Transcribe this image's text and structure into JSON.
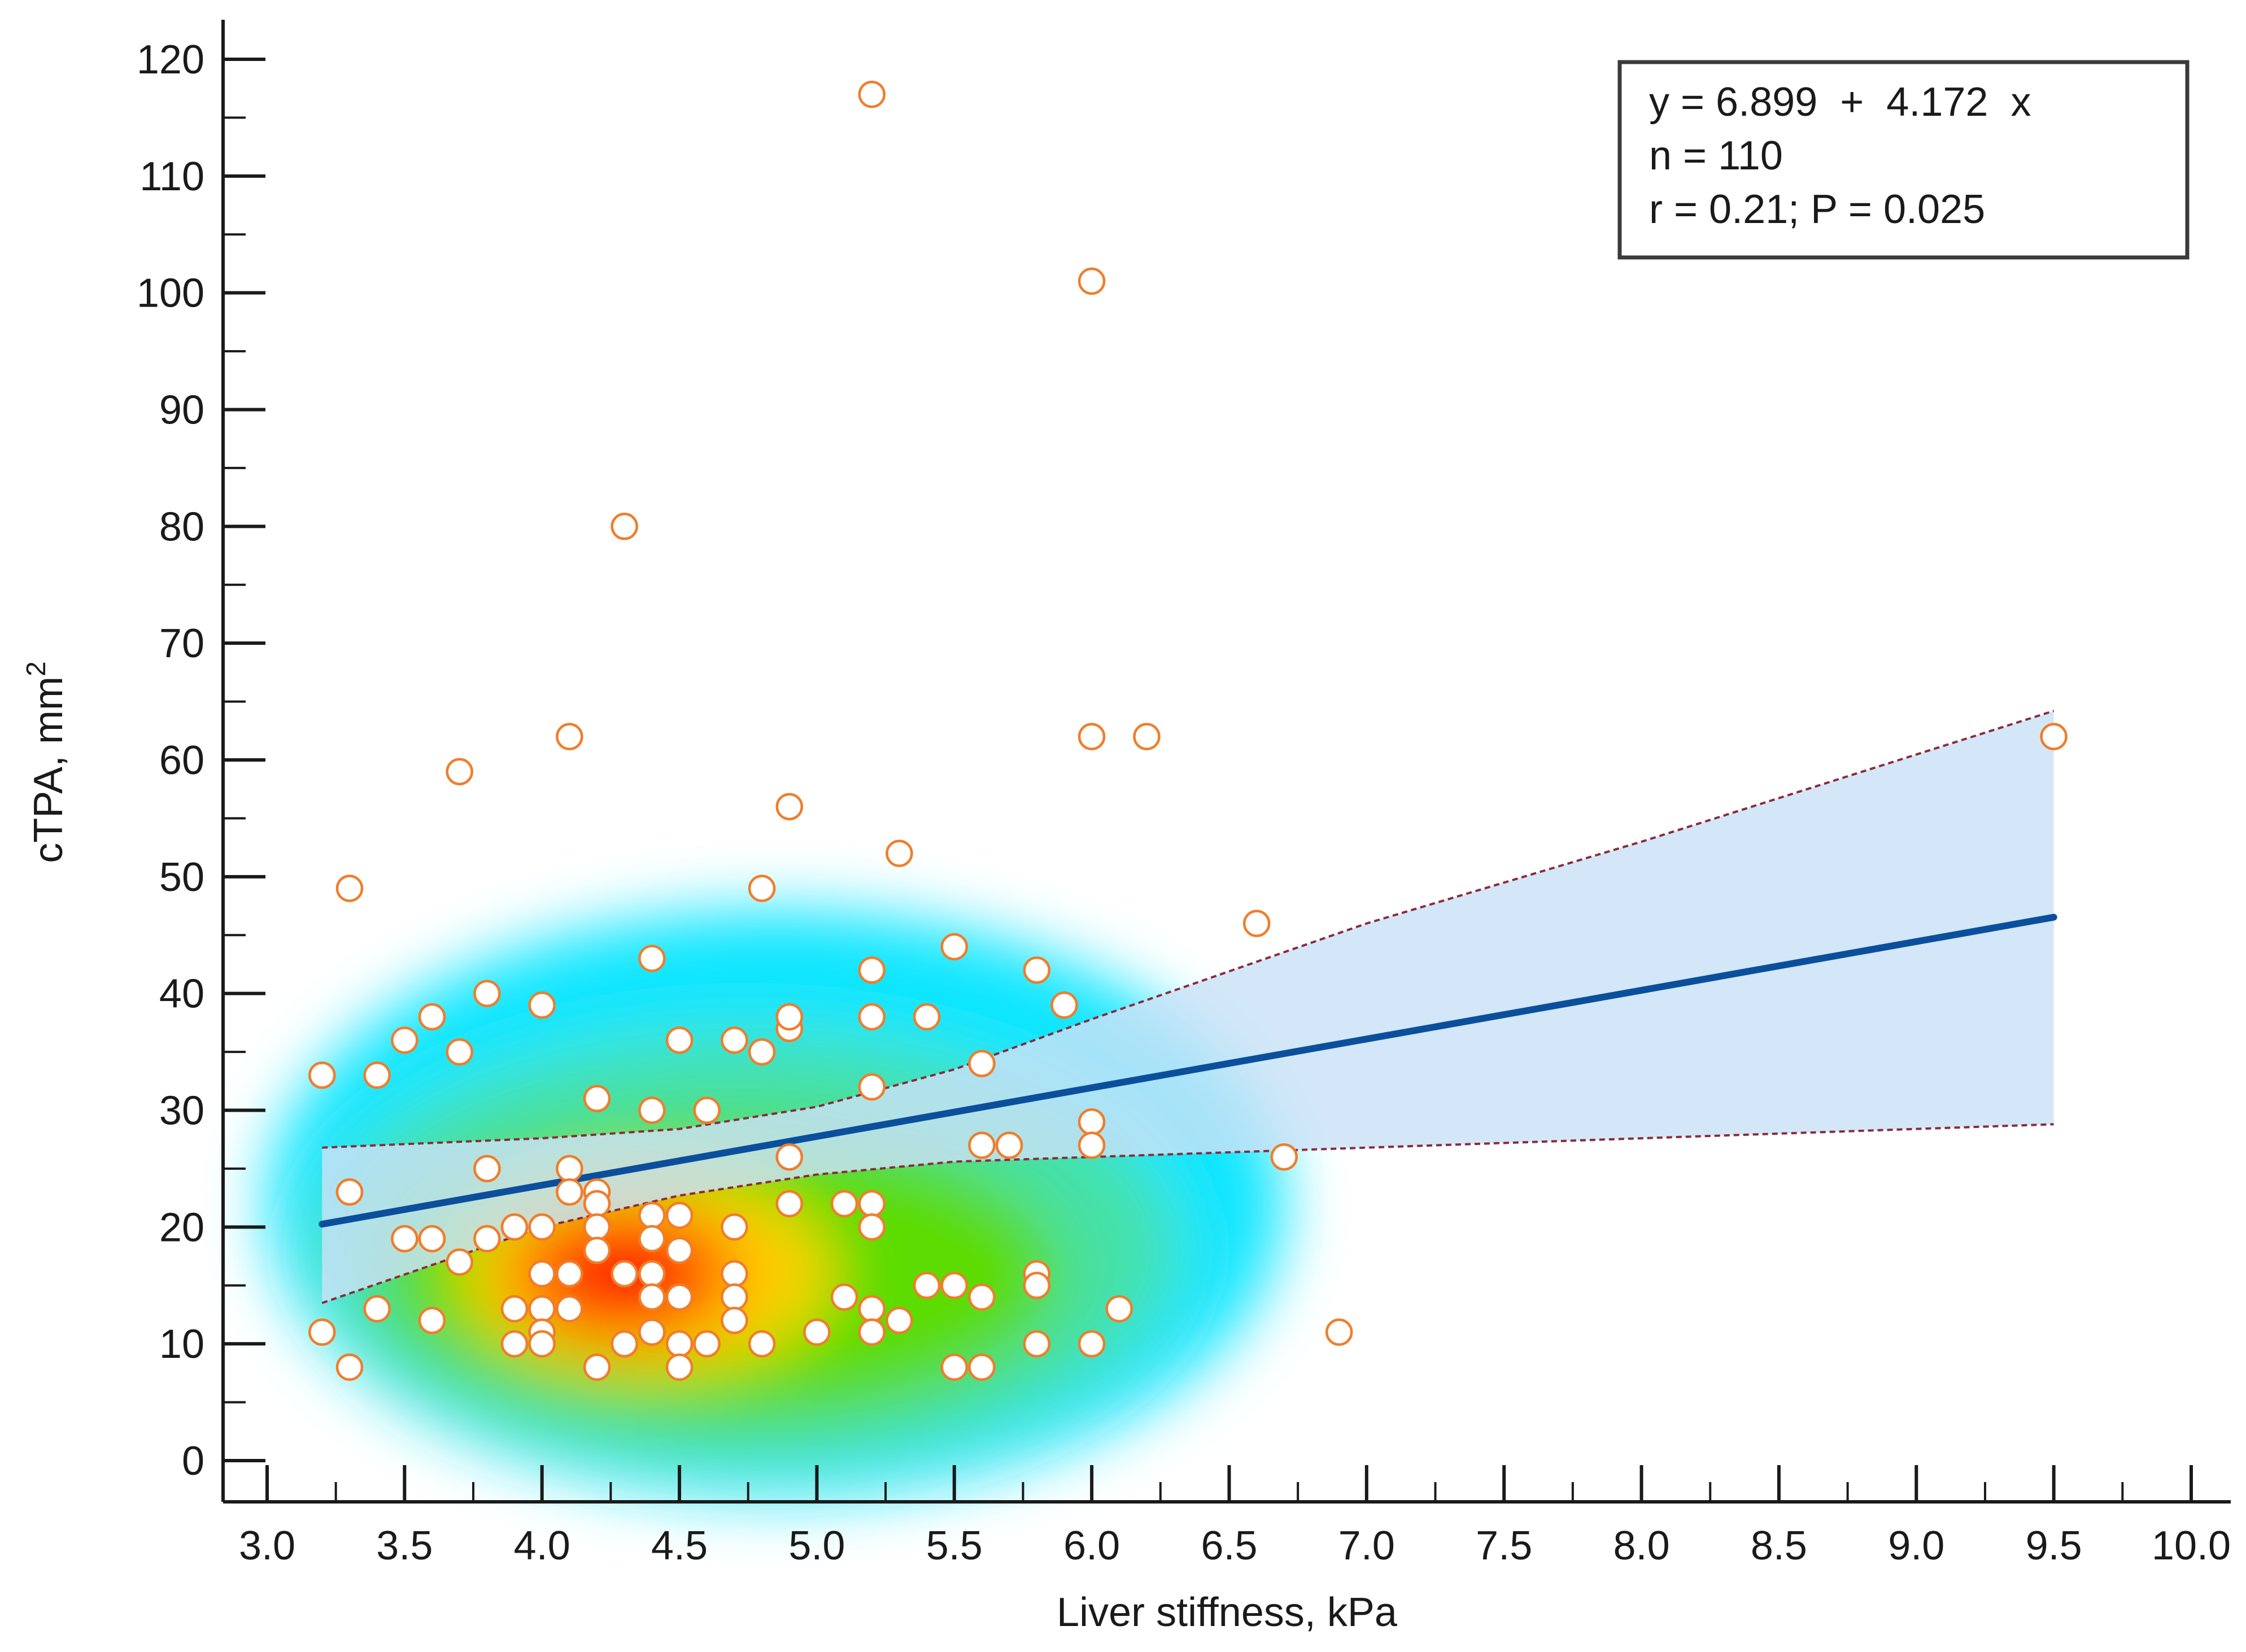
{
  "chart_data": {
    "type": "scatter",
    "title": "",
    "xlabel": "Liver stiffness, kPa",
    "ylabel_main": "cTPA, mm",
    "ylabel_sup": "2",
    "xlim": [
      3.0,
      10.0
    ],
    "ylim": [
      0,
      120
    ],
    "xticks": [
      "3.0",
      "3.5",
      "4.0",
      "4.5",
      "5.0",
      "5.5",
      "6.0",
      "6.5",
      "7.0",
      "7.5",
      "8.0",
      "8.5",
      "9.0",
      "9.5",
      "10.0"
    ],
    "yticks": [
      "0",
      "10",
      "20",
      "30",
      "40",
      "50",
      "60",
      "70",
      "80",
      "90",
      "100",
      "110",
      "120"
    ],
    "grid": false,
    "annotation": {
      "equation": "y = 6.899  +  4.172  x",
      "n": "n = 110",
      "stats": "r = 0.21; P = 0.025",
      "placement": "top-right"
    },
    "regression": {
      "intercept": 6.899,
      "slope": 4.172,
      "x_range": [
        3.2,
        9.5
      ],
      "ci_lower": [
        [
          3.2,
          13.5
        ],
        [
          4.0,
          20.0
        ],
        [
          4.5,
          22.7
        ],
        [
          5.0,
          24.5
        ],
        [
          5.5,
          25.6
        ],
        [
          6.0,
          26.0
        ],
        [
          7.0,
          26.8
        ],
        [
          8.0,
          27.6
        ],
        [
          9.5,
          28.8
        ]
      ],
      "ci_upper": [
        [
          3.2,
          26.8
        ],
        [
          4.0,
          27.6
        ],
        [
          4.5,
          28.4
        ],
        [
          5.0,
          30.3
        ],
        [
          5.5,
          33.5
        ],
        [
          6.0,
          37.8
        ],
        [
          7.0,
          46.0
        ],
        [
          8.0,
          53.0
        ],
        [
          9.5,
          64.2
        ]
      ]
    },
    "density_hotspot": {
      "x": 4.3,
      "y": 16
    },
    "points": [
      [
        3.2,
        33
      ],
      [
        3.2,
        11
      ],
      [
        3.3,
        49
      ],
      [
        3.3,
        23
      ],
      [
        3.3,
        8
      ],
      [
        3.4,
        33
      ],
      [
        3.4,
        13
      ],
      [
        3.5,
        36
      ],
      [
        3.5,
        19
      ],
      [
        3.6,
        38
      ],
      [
        3.6,
        19
      ],
      [
        3.6,
        12
      ],
      [
        3.7,
        59
      ],
      [
        3.7,
        35
      ],
      [
        3.7,
        17
      ],
      [
        3.8,
        40
      ],
      [
        3.8,
        25
      ],
      [
        3.8,
        19
      ],
      [
        3.9,
        20
      ],
      [
        3.9,
        13
      ],
      [
        3.9,
        10
      ],
      [
        4.0,
        39
      ],
      [
        4.0,
        20
      ],
      [
        4.0,
        16
      ],
      [
        4.0,
        13
      ],
      [
        4.0,
        11
      ],
      [
        4.0,
        10
      ],
      [
        4.1,
        62
      ],
      [
        4.1,
        25
      ],
      [
        4.1,
        23
      ],
      [
        4.1,
        16
      ],
      [
        4.1,
        13
      ],
      [
        4.2,
        31
      ],
      [
        4.2,
        23
      ],
      [
        4.2,
        22
      ],
      [
        4.2,
        20
      ],
      [
        4.2,
        18
      ],
      [
        4.2,
        8
      ],
      [
        4.3,
        80
      ],
      [
        4.3,
        16
      ],
      [
        4.3,
        10
      ],
      [
        4.4,
        43
      ],
      [
        4.4,
        30
      ],
      [
        4.4,
        21
      ],
      [
        4.4,
        19
      ],
      [
        4.4,
        16
      ],
      [
        4.4,
        14
      ],
      [
        4.4,
        11
      ],
      [
        4.5,
        36
      ],
      [
        4.5,
        21
      ],
      [
        4.5,
        18
      ],
      [
        4.5,
        14
      ],
      [
        4.5,
        10
      ],
      [
        4.5,
        8
      ],
      [
        4.6,
        30
      ],
      [
        4.6,
        10
      ],
      [
        4.7,
        36
      ],
      [
        4.7,
        20
      ],
      [
        4.7,
        16
      ],
      [
        4.7,
        14
      ],
      [
        4.7,
        12
      ],
      [
        4.8,
        49
      ],
      [
        4.8,
        35
      ],
      [
        4.8,
        10
      ],
      [
        4.9,
        56
      ],
      [
        4.9,
        38
      ],
      [
        4.9,
        37
      ],
      [
        4.9,
        26
      ],
      [
        4.9,
        22
      ],
      [
        5.0,
        11
      ],
      [
        5.1,
        22
      ],
      [
        5.1,
        14
      ],
      [
        5.2,
        117
      ],
      [
        5.2,
        42
      ],
      [
        5.2,
        38
      ],
      [
        5.2,
        32
      ],
      [
        5.2,
        22
      ],
      [
        5.2,
        20
      ],
      [
        5.2,
        13
      ],
      [
        5.2,
        11
      ],
      [
        5.3,
        52
      ],
      [
        5.3,
        12
      ],
      [
        5.4,
        38
      ],
      [
        5.4,
        15
      ],
      [
        5.5,
        44
      ],
      [
        5.5,
        15
      ],
      [
        5.5,
        8
      ],
      [
        5.6,
        34
      ],
      [
        5.6,
        27
      ],
      [
        5.6,
        14
      ],
      [
        5.6,
        8
      ],
      [
        5.7,
        27
      ],
      [
        5.8,
        42
      ],
      [
        5.8,
        16
      ],
      [
        5.8,
        15
      ],
      [
        5.8,
        10
      ],
      [
        5.9,
        39
      ],
      [
        6.0,
        101
      ],
      [
        6.0,
        62
      ],
      [
        6.0,
        29
      ],
      [
        6.0,
        27
      ],
      [
        6.0,
        10
      ],
      [
        6.1,
        13
      ],
      [
        6.2,
        62
      ],
      [
        6.6,
        46
      ],
      [
        6.7,
        26
      ],
      [
        6.9,
        11
      ],
      [
        9.5,
        62
      ],
      [
        4.9,
        38
      ],
      [
        5.2,
        11
      ]
    ],
    "colors": {
      "regression_line": "#0b4f9c",
      "ci_fill": "#c9e2f7",
      "ci_border": "#8b2b3a",
      "point_stroke": "#f07d2a",
      "point_fill": "#ffffff",
      "axis": "#1a1a1a"
    }
  }
}
